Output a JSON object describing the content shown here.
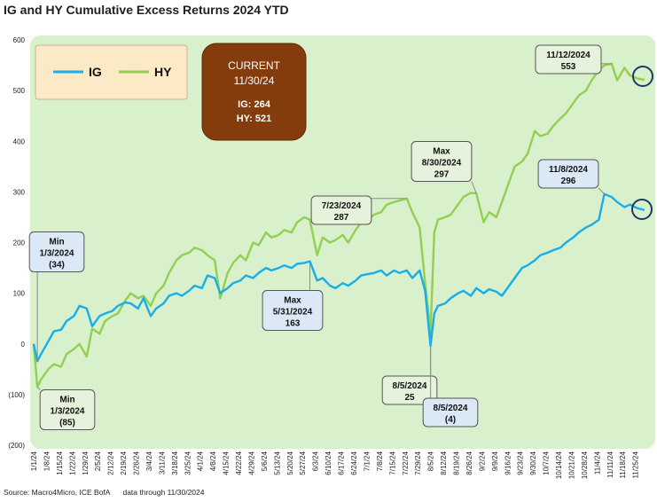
{
  "header": {
    "title": "IG and HY Cumulative Excess Returns 2024 YTD"
  },
  "footer": {
    "source": "Source: Macro4Micro, ICE BofA",
    "note": "data through 11/30/2024"
  },
  "current_box": {
    "heading": "CURRENT",
    "date": "11/30/24",
    "ig": "IG: 264",
    "hy": "HY: 521"
  },
  "colors": {
    "ig": "#19aee8",
    "hy": "#92d050",
    "plot_bg": "#d8f0cc",
    "frame_bg": "#f8fcf5",
    "box_brown": "#843c0c",
    "legend_bg": "#fce9c6",
    "ig_callout": "#dbe8f6",
    "hy_callout": "#e6f2dc",
    "circle": "#1f3864"
  },
  "chart_data": {
    "type": "line",
    "title": "IG and HY Cumulative Excess Returns 2024 YTD",
    "xlabel": "",
    "ylabel": "",
    "ylim": [
      -200,
      600
    ],
    "y_ticks": [
      -200,
      -100,
      0,
      100,
      200,
      300,
      400,
      500,
      600
    ],
    "y_tick_labels": [
      "(200)",
      "(100)",
      "0",
      "100",
      "200",
      "300",
      "400",
      "500",
      "600"
    ],
    "x_tick_labels": [
      "1/1/24",
      "1/8/24",
      "1/15/24",
      "1/22/24",
      "1/29/24",
      "2/5/24",
      "2/12/24",
      "2/19/24",
      "2/26/24",
      "3/4/24",
      "3/11/24",
      "3/18/24",
      "3/25/24",
      "4/1/24",
      "4/8/24",
      "4/15/24",
      "4/22/24",
      "4/29/24",
      "5/6/24",
      "5/13/24",
      "5/20/24",
      "5/27/24",
      "6/3/24",
      "6/10/24",
      "6/17/24",
      "6/24/24",
      "7/1/24",
      "7/8/24",
      "7/15/24",
      "7/22/24",
      "7/29/24",
      "8/5/24",
      "8/12/24",
      "8/19/24",
      "8/26/24",
      "9/2/24",
      "9/9/24",
      "9/16/24",
      "9/23/24",
      "9/30/24",
      "10/7/24",
      "10/14/24",
      "10/21/24",
      "10/28/24",
      "11/4/24",
      "11/11/24",
      "11/18/24",
      "11/25/24"
    ],
    "grid": false,
    "legend": {
      "position": "top-left",
      "entries": [
        "IG",
        "HY"
      ]
    },
    "series": [
      {
        "name": "IG",
        "x": [
          "2024-01-01",
          "2024-01-03",
          "2024-01-05",
          "2024-01-09",
          "2024-01-12",
          "2024-01-16",
          "2024-01-19",
          "2024-01-23",
          "2024-01-26",
          "2024-01-30",
          "2024-02-02",
          "2024-02-06",
          "2024-02-09",
          "2024-02-13",
          "2024-02-16",
          "2024-02-20",
          "2024-02-23",
          "2024-02-27",
          "2024-03-01",
          "2024-03-05",
          "2024-03-08",
          "2024-03-12",
          "2024-03-15",
          "2024-03-19",
          "2024-03-22",
          "2024-03-26",
          "2024-03-29",
          "2024-04-02",
          "2024-04-05",
          "2024-04-09",
          "2024-04-12",
          "2024-04-16",
          "2024-04-19",
          "2024-04-23",
          "2024-04-26",
          "2024-04-30",
          "2024-05-03",
          "2024-05-07",
          "2024-05-10",
          "2024-05-14",
          "2024-05-17",
          "2024-05-21",
          "2024-05-24",
          "2024-05-28",
          "2024-05-31",
          "2024-06-04",
          "2024-06-07",
          "2024-06-11",
          "2024-06-14",
          "2024-06-18",
          "2024-06-21",
          "2024-06-25",
          "2024-06-28",
          "2024-07-02",
          "2024-07-05",
          "2024-07-09",
          "2024-07-12",
          "2024-07-16",
          "2024-07-19",
          "2024-07-23",
          "2024-07-26",
          "2024-07-30",
          "2024-08-02",
          "2024-08-05",
          "2024-08-07",
          "2024-08-09",
          "2024-08-13",
          "2024-08-16",
          "2024-08-20",
          "2024-08-23",
          "2024-08-27",
          "2024-08-30",
          "2024-09-03",
          "2024-09-06",
          "2024-09-10",
          "2024-09-13",
          "2024-09-17",
          "2024-09-20",
          "2024-09-24",
          "2024-09-27",
          "2024-10-01",
          "2024-10-04",
          "2024-10-08",
          "2024-10-11",
          "2024-10-15",
          "2024-10-18",
          "2024-10-22",
          "2024-10-25",
          "2024-10-29",
          "2024-11-01",
          "2024-11-05",
          "2024-11-08",
          "2024-11-12",
          "2024-11-15",
          "2024-11-19",
          "2024-11-22",
          "2024-11-26",
          "2024-11-30"
        ],
        "values": [
          0,
          -34,
          -20,
          5,
          25,
          28,
          45,
          55,
          75,
          70,
          35,
          55,
          60,
          65,
          75,
          82,
          80,
          70,
          90,
          55,
          70,
          80,
          95,
          100,
          95,
          105,
          115,
          110,
          135,
          130,
          100,
          110,
          120,
          125,
          135,
          130,
          140,
          150,
          145,
          150,
          155,
          150,
          158,
          160,
          163,
          125,
          130,
          115,
          110,
          120,
          115,
          125,
          135,
          138,
          140,
          145,
          135,
          145,
          140,
          145,
          130,
          145,
          105,
          -4,
          60,
          75,
          80,
          90,
          100,
          105,
          95,
          110,
          100,
          108,
          103,
          95,
          115,
          130,
          150,
          155,
          165,
          175,
          180,
          185,
          190,
          200,
          210,
          220,
          230,
          235,
          245,
          296,
          290,
          280,
          270,
          275,
          268,
          264
        ]
      },
      {
        "name": "HY",
        "x": [
          "2024-01-01",
          "2024-01-03",
          "2024-01-05",
          "2024-01-09",
          "2024-01-12",
          "2024-01-16",
          "2024-01-19",
          "2024-01-23",
          "2024-01-26",
          "2024-01-30",
          "2024-02-02",
          "2024-02-06",
          "2024-02-09",
          "2024-02-13",
          "2024-02-16",
          "2024-02-20",
          "2024-02-23",
          "2024-02-27",
          "2024-03-01",
          "2024-03-05",
          "2024-03-08",
          "2024-03-12",
          "2024-03-15",
          "2024-03-19",
          "2024-03-22",
          "2024-03-26",
          "2024-03-29",
          "2024-04-02",
          "2024-04-05",
          "2024-04-09",
          "2024-04-12",
          "2024-04-16",
          "2024-04-19",
          "2024-04-23",
          "2024-04-26",
          "2024-04-30",
          "2024-05-03",
          "2024-05-07",
          "2024-05-10",
          "2024-05-14",
          "2024-05-17",
          "2024-05-21",
          "2024-05-24",
          "2024-05-28",
          "2024-05-31",
          "2024-06-04",
          "2024-06-07",
          "2024-06-11",
          "2024-06-14",
          "2024-06-18",
          "2024-06-21",
          "2024-06-25",
          "2024-06-28",
          "2024-07-02",
          "2024-07-05",
          "2024-07-09",
          "2024-07-12",
          "2024-07-16",
          "2024-07-19",
          "2024-07-23",
          "2024-07-26",
          "2024-07-30",
          "2024-08-02",
          "2024-08-05",
          "2024-08-07",
          "2024-08-09",
          "2024-08-13",
          "2024-08-16",
          "2024-08-20",
          "2024-08-23",
          "2024-08-27",
          "2024-08-30",
          "2024-09-03",
          "2024-09-06",
          "2024-09-10",
          "2024-09-13",
          "2024-09-17",
          "2024-09-20",
          "2024-09-24",
          "2024-09-27",
          "2024-10-01",
          "2024-10-04",
          "2024-10-08",
          "2024-10-11",
          "2024-10-15",
          "2024-10-18",
          "2024-10-22",
          "2024-10-25",
          "2024-10-29",
          "2024-11-01",
          "2024-11-05",
          "2024-11-08",
          "2024-11-12",
          "2024-11-15",
          "2024-11-19",
          "2024-11-22",
          "2024-11-26",
          "2024-11-30"
        ],
        "values": [
          0,
          -85,
          -70,
          -50,
          -40,
          -45,
          -20,
          -10,
          0,
          -25,
          30,
          20,
          45,
          55,
          60,
          85,
          100,
          90,
          95,
          75,
          100,
          115,
          140,
          165,
          175,
          180,
          190,
          185,
          175,
          165,
          90,
          140,
          160,
          175,
          165,
          200,
          195,
          220,
          210,
          215,
          225,
          220,
          240,
          250,
          245,
          175,
          210,
          200,
          205,
          215,
          200,
          225,
          240,
          245,
          255,
          260,
          275,
          280,
          283,
          287,
          260,
          230,
          120,
          25,
          220,
          245,
          250,
          255,
          275,
          290,
          298,
          297,
          240,
          260,
          250,
          280,
          320,
          350,
          360,
          375,
          420,
          410,
          415,
          430,
          445,
          455,
          475,
          490,
          500,
          520,
          540,
          550,
          553,
          520,
          545,
          530,
          524,
          521
        ]
      }
    ],
    "annotations": [
      {
        "series": "IG",
        "x": "2024-01-03",
        "lines": [
          "Min",
          "1/3/2024",
          "(34)"
        ]
      },
      {
        "series": "HY",
        "x": "2024-01-03",
        "lines": [
          "Min",
          "1/3/2024",
          "(85)"
        ]
      },
      {
        "series": "IG",
        "x": "2024-05-31",
        "lines": [
          "Max",
          "5/31/2024",
          "163"
        ]
      },
      {
        "series": "HY",
        "x": "2024-07-23",
        "lines": [
          "7/23/2024",
          "287"
        ]
      },
      {
        "series": "HY",
        "x": "2024-08-30",
        "lines": [
          "Max",
          "8/30/2024",
          "297"
        ]
      },
      {
        "series": "HY",
        "x": "2024-08-05",
        "lines": [
          "8/5/2024",
          "25"
        ]
      },
      {
        "series": "IG",
        "x": "2024-08-05",
        "lines": [
          "8/5/2024",
          "(4)"
        ]
      },
      {
        "series": "IG",
        "x": "2024-11-08",
        "lines": [
          "11/8/2024",
          "296"
        ]
      },
      {
        "series": "HY",
        "x": "2024-11-12",
        "lines": [
          "11/12/2024",
          "553"
        ]
      }
    ]
  }
}
